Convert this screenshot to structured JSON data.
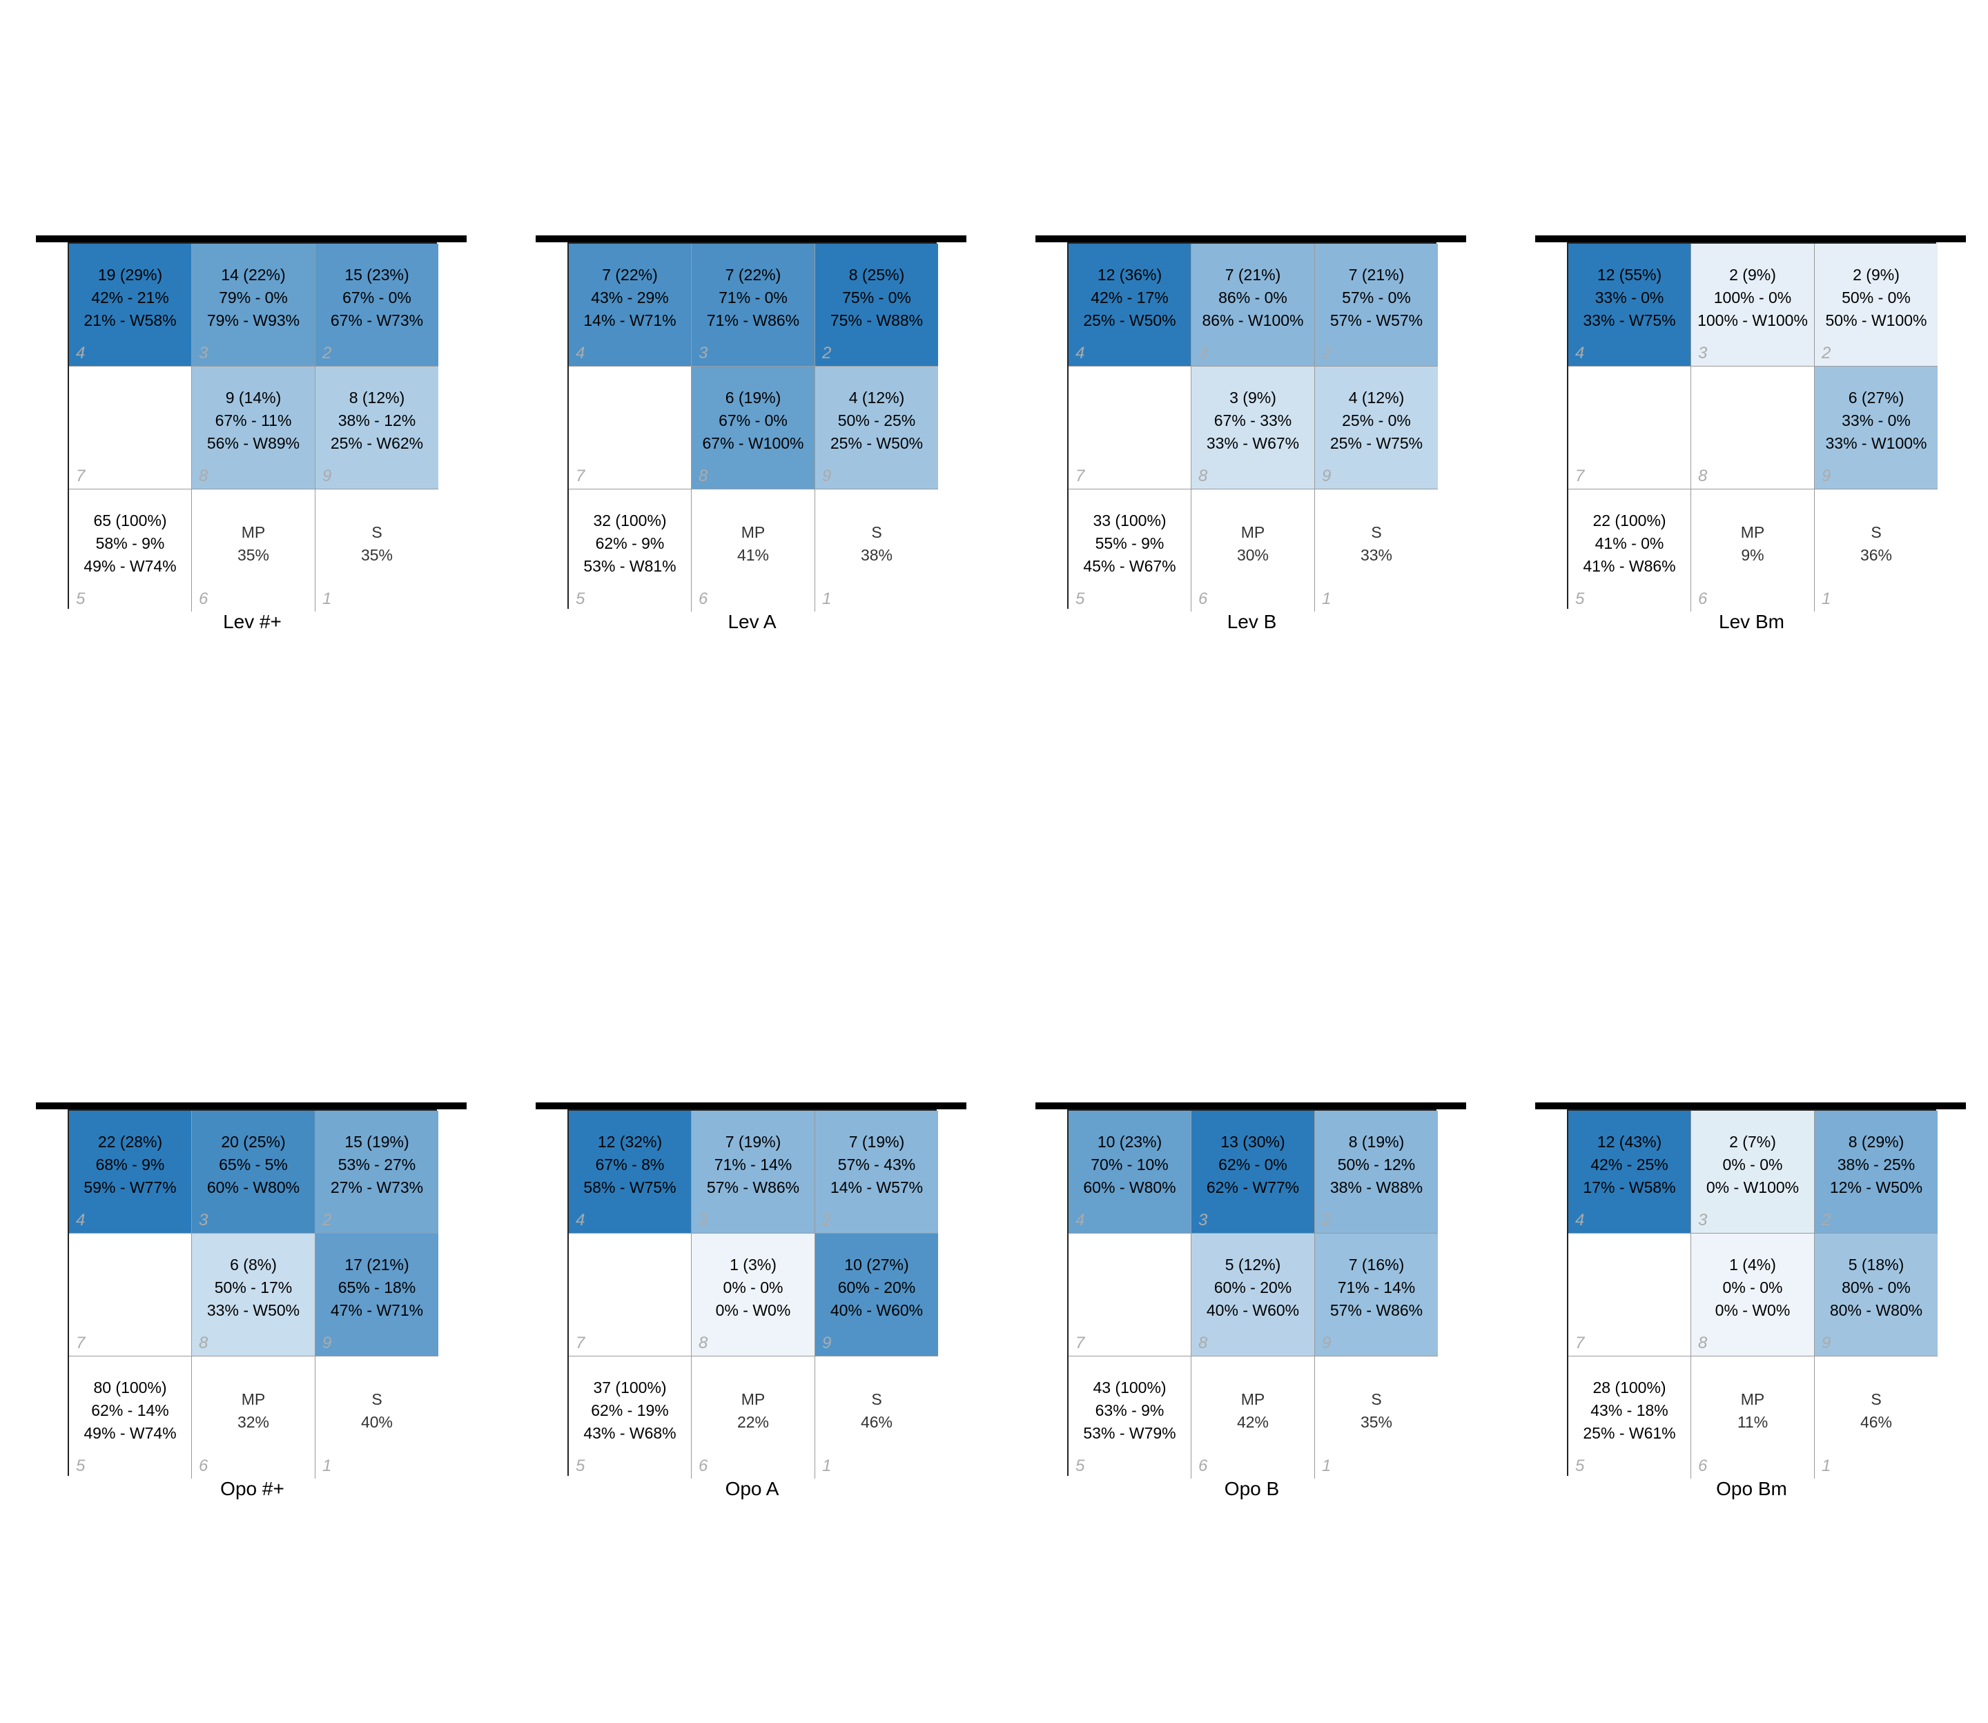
{
  "page": {
    "background": "#ffffff"
  },
  "color_scale": {
    "low": "#ffffff",
    "high": "#2b7bba"
  },
  "chart_data": [
    {
      "type": "heatmap",
      "title": "Lev #+",
      "cells": [
        {
          "zone": "4",
          "lines": [
            "19 (29%)",
            "42% - 21%",
            "21% - W58%"
          ],
          "intensity": 1.0
        },
        {
          "zone": "3",
          "lines": [
            "14 (22%)",
            "79% - 0%",
            "79% - W93%"
          ],
          "intensity": 0.72
        },
        {
          "zone": "2",
          "lines": [
            "15 (23%)",
            "67% - 0%",
            "67% - W73%"
          ],
          "intensity": 0.78
        },
        {
          "zone": "7",
          "lines": [],
          "intensity": 0
        },
        {
          "zone": "8",
          "lines": [
            "9 (14%)",
            "67% - 11%",
            "56% - W89%"
          ],
          "intensity": 0.45
        },
        {
          "zone": "9",
          "lines": [
            "8 (12%)",
            "38% - 12%",
            "25% - W62%"
          ],
          "intensity": 0.38
        },
        {
          "zone": "5",
          "lines": [
            "65 (100%)",
            "58% - 9%",
            "49% - W74%"
          ],
          "intensity": 0,
          "summary": false
        },
        {
          "zone": "6",
          "lines": [
            "MP",
            "35%"
          ],
          "intensity": 0,
          "summary": true
        },
        {
          "zone": "1",
          "lines": [
            "S",
            "35%"
          ],
          "intensity": 0,
          "summary": true
        }
      ]
    },
    {
      "type": "heatmap",
      "title": "Lev A",
      "cells": [
        {
          "zone": "4",
          "lines": [
            "7 (22%)",
            "43% - 29%",
            "14% - W71%"
          ],
          "intensity": 0.85
        },
        {
          "zone": "3",
          "lines": [
            "7 (22%)",
            "71% - 0%",
            "71% - W86%"
          ],
          "intensity": 0.85
        },
        {
          "zone": "2",
          "lines": [
            "8 (25%)",
            "75% - 0%",
            "75% - W88%"
          ],
          "intensity": 1.0
        },
        {
          "zone": "7",
          "lines": [],
          "intensity": 0
        },
        {
          "zone": "8",
          "lines": [
            "6 (19%)",
            "67% - 0%",
            "67% - W100%"
          ],
          "intensity": 0.72
        },
        {
          "zone": "9",
          "lines": [
            "4 (12%)",
            "50% - 25%",
            "25% - W50%"
          ],
          "intensity": 0.45
        },
        {
          "zone": "5",
          "lines": [
            "32 (100%)",
            "62% - 9%",
            "53% - W81%"
          ],
          "intensity": 0,
          "summary": false
        },
        {
          "zone": "6",
          "lines": [
            "MP",
            "41%"
          ],
          "intensity": 0,
          "summary": true
        },
        {
          "zone": "1",
          "lines": [
            "S",
            "38%"
          ],
          "intensity": 0,
          "summary": true
        }
      ]
    },
    {
      "type": "heatmap",
      "title": "Lev B",
      "cells": [
        {
          "zone": "4",
          "lines": [
            "12 (36%)",
            "42% - 17%",
            "25% - W50%"
          ],
          "intensity": 1.0
        },
        {
          "zone": "3",
          "lines": [
            "7 (21%)",
            "86% - 0%",
            "86% - W100%"
          ],
          "intensity": 0.55
        },
        {
          "zone": "2",
          "lines": [
            "7 (21%)",
            "57% - 0%",
            "57% - W57%"
          ],
          "intensity": 0.55
        },
        {
          "zone": "7",
          "lines": [],
          "intensity": 0
        },
        {
          "zone": "8",
          "lines": [
            "3 (9%)",
            "67% - 33%",
            "33% - W67%"
          ],
          "intensity": 0.22
        },
        {
          "zone": "9",
          "lines": [
            "4 (12%)",
            "25% - 0%",
            "25% - W75%"
          ],
          "intensity": 0.3
        },
        {
          "zone": "5",
          "lines": [
            "33 (100%)",
            "55% - 9%",
            "45% - W67%"
          ],
          "intensity": 0,
          "summary": false
        },
        {
          "zone": "6",
          "lines": [
            "MP",
            "30%"
          ],
          "intensity": 0,
          "summary": true
        },
        {
          "zone": "1",
          "lines": [
            "S",
            "33%"
          ],
          "intensity": 0,
          "summary": true
        }
      ]
    },
    {
      "type": "heatmap",
      "title": "Lev Bm",
      "cells": [
        {
          "zone": "4",
          "lines": [
            "12 (55%)",
            "33% - 0%",
            "33% - W75%"
          ],
          "intensity": 1.0
        },
        {
          "zone": "3",
          "lines": [
            "2 (9%)",
            "100% - 0%",
            "100% - W100%"
          ],
          "intensity": 0.12
        },
        {
          "zone": "2",
          "lines": [
            "2 (9%)",
            "50% - 0%",
            "50% - W100%"
          ],
          "intensity": 0.12
        },
        {
          "zone": "7",
          "lines": [],
          "intensity": 0
        },
        {
          "zone": "8",
          "lines": [],
          "intensity": 0
        },
        {
          "zone": "9",
          "lines": [
            "6 (27%)",
            "33% - 0%",
            "33% - W100%"
          ],
          "intensity": 0.45
        },
        {
          "zone": "5",
          "lines": [
            "22 (100%)",
            "41% - 0%",
            "41% - W86%"
          ],
          "intensity": 0,
          "summary": false
        },
        {
          "zone": "6",
          "lines": [
            "MP",
            "9%"
          ],
          "intensity": 0,
          "summary": true
        },
        {
          "zone": "1",
          "lines": [
            "S",
            "36%"
          ],
          "intensity": 0,
          "summary": true
        }
      ]
    },
    {
      "type": "heatmap",
      "title": "Opo #+",
      "cells": [
        {
          "zone": "4",
          "lines": [
            "22 (28%)",
            "68% - 9%",
            "59% - W77%"
          ],
          "intensity": 1.0
        },
        {
          "zone": "3",
          "lines": [
            "20 (25%)",
            "65% - 5%",
            "60% - W80%"
          ],
          "intensity": 0.88
        },
        {
          "zone": "2",
          "lines": [
            "15 (19%)",
            "53% - 27%",
            "27% - W73%"
          ],
          "intensity": 0.66
        },
        {
          "zone": "7",
          "lines": [],
          "intensity": 0
        },
        {
          "zone": "8",
          "lines": [
            "6 (8%)",
            "50% - 17%",
            "33% - W50%"
          ],
          "intensity": 0.26
        },
        {
          "zone": "9",
          "lines": [
            "17 (21%)",
            "65% - 18%",
            "47% - W71%"
          ],
          "intensity": 0.74
        },
        {
          "zone": "5",
          "lines": [
            "80 (100%)",
            "62% - 14%",
            "49% - W74%"
          ],
          "intensity": 0,
          "summary": false
        },
        {
          "zone": "6",
          "lines": [
            "MP",
            "32%"
          ],
          "intensity": 0,
          "summary": true
        },
        {
          "zone": "1",
          "lines": [
            "S",
            "40%"
          ],
          "intensity": 0,
          "summary": true
        }
      ]
    },
    {
      "type": "heatmap",
      "title": "Opo A",
      "cells": [
        {
          "zone": "4",
          "lines": [
            "12 (32%)",
            "67% - 8%",
            "58% - W75%"
          ],
          "intensity": 1.0
        },
        {
          "zone": "3",
          "lines": [
            "7 (19%)",
            "71% - 14%",
            "57% - W86%"
          ],
          "intensity": 0.55
        },
        {
          "zone": "2",
          "lines": [
            "7 (19%)",
            "57% - 43%",
            "14% - W57%"
          ],
          "intensity": 0.55
        },
        {
          "zone": "7",
          "lines": [],
          "intensity": 0
        },
        {
          "zone": "8",
          "lines": [
            "1 (3%)",
            "0% - 0%",
            "0% - W0%"
          ],
          "intensity": 0.08
        },
        {
          "zone": "9",
          "lines": [
            "10 (27%)",
            "60% - 20%",
            "40% - W60%"
          ],
          "intensity": 0.82
        },
        {
          "zone": "5",
          "lines": [
            "37 (100%)",
            "62% - 19%",
            "43% - W68%"
          ],
          "intensity": 0,
          "summary": false
        },
        {
          "zone": "6",
          "lines": [
            "MP",
            "22%"
          ],
          "intensity": 0,
          "summary": true
        },
        {
          "zone": "1",
          "lines": [
            "S",
            "46%"
          ],
          "intensity": 0,
          "summary": true
        }
      ]
    },
    {
      "type": "heatmap",
      "title": "Opo B",
      "cells": [
        {
          "zone": "4",
          "lines": [
            "10 (23%)",
            "70% - 10%",
            "60% - W80%"
          ],
          "intensity": 0.72
        },
        {
          "zone": "3",
          "lines": [
            "13 (30%)",
            "62% - 0%",
            "62% - W77%"
          ],
          "intensity": 1.0
        },
        {
          "zone": "2",
          "lines": [
            "8 (19%)",
            "50% - 12%",
            "38% - W88%"
          ],
          "intensity": 0.55
        },
        {
          "zone": "7",
          "lines": [],
          "intensity": 0
        },
        {
          "zone": "8",
          "lines": [
            "5 (12%)",
            "60% - 20%",
            "40% - W60%"
          ],
          "intensity": 0.34
        },
        {
          "zone": "9",
          "lines": [
            "7 (16%)",
            "71% - 14%",
            "57% - W86%"
          ],
          "intensity": 0.48
        },
        {
          "zone": "5",
          "lines": [
            "43 (100%)",
            "63% - 9%",
            "53% - W79%"
          ],
          "intensity": 0,
          "summary": false
        },
        {
          "zone": "6",
          "lines": [
            "MP",
            "42%"
          ],
          "intensity": 0,
          "summary": true
        },
        {
          "zone": "1",
          "lines": [
            "S",
            "35%"
          ],
          "intensity": 0,
          "summary": true
        }
      ]
    },
    {
      "type": "heatmap",
      "title": "Opo Bm",
      "cells": [
        {
          "zone": "4",
          "lines": [
            "12 (43%)",
            "42% - 25%",
            "17% - W58%"
          ],
          "intensity": 1.0
        },
        {
          "zone": "3",
          "lines": [
            "2 (7%)",
            "0% - 0%",
            "0% - W100%"
          ],
          "intensity": 0.14
        },
        {
          "zone": "2",
          "lines": [
            "8 (29%)",
            "38% - 25%",
            "12% - W50%"
          ],
          "intensity": 0.62
        },
        {
          "zone": "7",
          "lines": [],
          "intensity": 0
        },
        {
          "zone": "8",
          "lines": [
            "1 (4%)",
            "0% - 0%",
            "0% - W0%"
          ],
          "intensity": 0.08
        },
        {
          "zone": "9",
          "lines": [
            "5 (18%)",
            "80% - 0%",
            "80% - W80%"
          ],
          "intensity": 0.45
        },
        {
          "zone": "5",
          "lines": [
            "28 (100%)",
            "43% - 18%",
            "25% - W61%"
          ],
          "intensity": 0,
          "summary": false
        },
        {
          "zone": "6",
          "lines": [
            "MP",
            "11%"
          ],
          "intensity": 0,
          "summary": true
        },
        {
          "zone": "1",
          "lines": [
            "S",
            "46%"
          ],
          "intensity": 0,
          "summary": true
        }
      ]
    }
  ]
}
